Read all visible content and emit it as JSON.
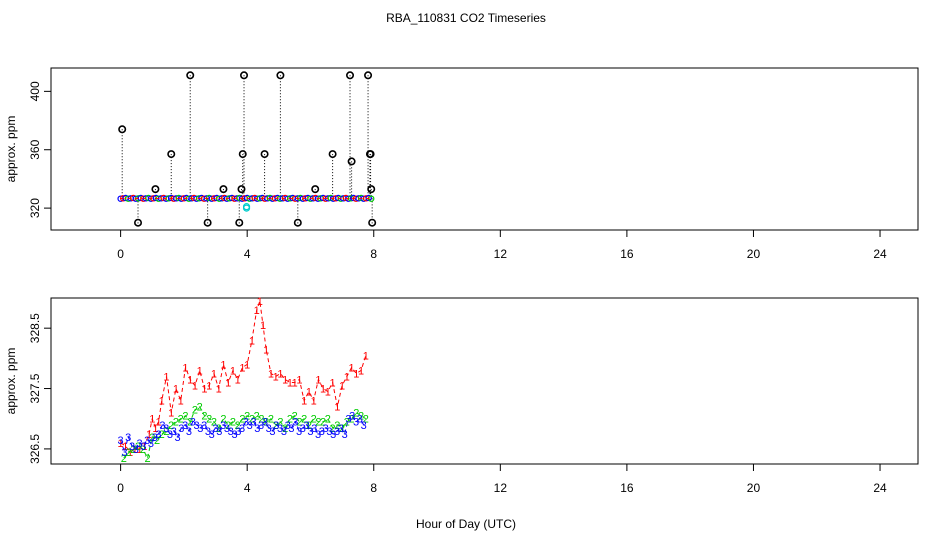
{
  "title": "RBA_110831  CO2 Timeseries",
  "xlabel": "Hour of Day (UTC)",
  "colors": {
    "series1": "#ff0000",
    "series2": "#00cc00",
    "series3": "#0000ff",
    "raw": "#000000",
    "highlight": "#00cccc"
  },
  "chart_data": [
    {
      "type": "scatter",
      "ylabel": "approx. ppm",
      "xlim": [
        -2.2,
        25.2
      ],
      "ylim": [
        305,
        416
      ],
      "xticks": [
        "0",
        "4",
        "8",
        "12",
        "16",
        "20",
        "24"
      ],
      "yticks": [
        "320",
        "360",
        "400"
      ],
      "grid": false,
      "spikes": [
        [
          0.05,
          374
        ],
        [
          0.55,
          310
        ],
        [
          1.1,
          333
        ],
        [
          1.6,
          357
        ],
        [
          2.2,
          411
        ],
        [
          2.75,
          310
        ],
        [
          3.25,
          333
        ],
        [
          3.75,
          310
        ],
        [
          3.82,
          333
        ],
        [
          3.86,
          357
        ],
        [
          3.9,
          411
        ],
        [
          4.55,
          357
        ],
        [
          5.05,
          411
        ],
        [
          5.6,
          310
        ],
        [
          6.15,
          333
        ],
        [
          6.7,
          357
        ],
        [
          7.25,
          411
        ],
        [
          7.3,
          352
        ],
        [
          7.82,
          411
        ],
        [
          7.88,
          357
        ],
        [
          7.9,
          357
        ],
        [
          7.92,
          333
        ],
        [
          7.95,
          310
        ]
      ],
      "outliers": [
        {
          "x": 3.98,
          "y": 320
        },
        {
          "x": 3.98,
          "y": 321
        }
      ],
      "baseline": {
        "x_start": 0,
        "x_end": 7.95,
        "step": 0.08,
        "value": 326.7
      }
    },
    {
      "type": "line",
      "ylabel": "approx. ppm",
      "xlim": [
        -2.2,
        25.2
      ],
      "ylim": [
        326.25,
        329.0
      ],
      "xticks": [
        "0",
        "4",
        "8",
        "12",
        "16",
        "20",
        "24"
      ],
      "yticks": [
        "326.5",
        "327.5",
        "328.5"
      ],
      "grid": false,
      "series": [
        {
          "symbol": "1",
          "x": [
            0.0,
            0.15,
            0.3,
            0.45,
            0.6,
            0.75,
            0.9,
            1.0,
            1.1,
            1.2,
            1.3,
            1.45,
            1.6,
            1.75,
            1.9,
            2.05,
            2.2,
            2.35,
            2.5,
            2.65,
            2.8,
            2.95,
            3.1,
            3.25,
            3.4,
            3.55,
            3.7,
            3.85,
            4.0,
            4.15,
            4.3,
            4.4,
            4.5,
            4.6,
            4.75,
            4.9,
            5.05,
            5.2,
            5.35,
            5.5,
            5.65,
            5.8,
            5.95,
            6.1,
            6.25,
            6.4,
            6.55,
            6.7,
            6.85,
            7.0,
            7.15,
            7.3,
            7.45,
            7.6,
            7.75
          ],
          "values": [
            326.6,
            326.55,
            326.45,
            326.5,
            326.5,
            326.55,
            326.75,
            327.0,
            326.85,
            326.95,
            327.3,
            327.7,
            327.1,
            327.5,
            327.3,
            327.85,
            327.65,
            327.55,
            327.8,
            327.5,
            327.55,
            327.75,
            327.5,
            327.9,
            327.6,
            327.8,
            327.65,
            327.85,
            327.9,
            328.3,
            328.8,
            328.95,
            328.55,
            328.15,
            327.75,
            327.7,
            327.75,
            327.65,
            327.6,
            327.6,
            327.65,
            327.3,
            327.45,
            327.3,
            327.65,
            327.5,
            327.45,
            327.6,
            327.2,
            327.55,
            327.7,
            327.85,
            327.75,
            327.8,
            328.05
          ]
        },
        {
          "symbol": "2",
          "x": [
            0.1,
            0.25,
            0.4,
            0.55,
            0.7,
            0.85,
            1.0,
            1.15,
            1.3,
            1.45,
            1.6,
            1.75,
            1.9,
            2.05,
            2.2,
            2.35,
            2.5,
            2.65,
            2.8,
            2.95,
            3.1,
            3.25,
            3.4,
            3.55,
            3.7,
            3.85,
            4.0,
            4.15,
            4.3,
            4.45,
            4.6,
            4.75,
            4.9,
            5.05,
            5.2,
            5.35,
            5.5,
            5.65,
            5.8,
            5.95,
            6.1,
            6.25,
            6.4,
            6.55,
            6.7,
            6.85,
            7.0,
            7.15,
            7.3,
            7.45,
            7.6,
            7.75
          ],
          "values": [
            326.35,
            326.45,
            326.5,
            326.55,
            326.5,
            326.35,
            326.7,
            326.65,
            326.75,
            326.8,
            326.9,
            326.95,
            327.0,
            327.05,
            326.95,
            327.15,
            327.2,
            327.05,
            327.0,
            326.95,
            326.85,
            327.0,
            326.9,
            326.95,
            326.9,
            327.0,
            327.05,
            327.0,
            327.05,
            327.0,
            326.95,
            327.0,
            326.9,
            326.95,
            326.85,
            327.0,
            327.05,
            326.95,
            327.0,
            326.9,
            327.0,
            326.95,
            326.95,
            327.0,
            326.85,
            326.9,
            326.85,
            326.95,
            327.0,
            327.1,
            327.05,
            327.0
          ]
        },
        {
          "symbol": "3",
          "x": [
            0.0,
            0.12,
            0.24,
            0.36,
            0.48,
            0.6,
            0.72,
            0.84,
            0.96,
            1.08,
            1.2,
            1.32,
            1.44,
            1.56,
            1.68,
            1.8,
            1.92,
            2.04,
            2.16,
            2.28,
            2.4,
            2.52,
            2.64,
            2.76,
            2.88,
            3.0,
            3.12,
            3.24,
            3.36,
            3.48,
            3.6,
            3.72,
            3.84,
            3.96,
            4.08,
            4.2,
            4.32,
            4.44,
            4.56,
            4.68,
            4.8,
            4.92,
            5.04,
            5.16,
            5.28,
            5.4,
            5.52,
            5.64,
            5.76,
            5.88,
            6.0,
            6.12,
            6.24,
            6.36,
            6.48,
            6.6,
            6.72,
            6.84,
            6.96,
            7.08,
            7.2,
            7.32,
            7.44,
            7.56,
            7.68
          ],
          "values": [
            326.65,
            326.45,
            326.7,
            326.55,
            326.5,
            326.6,
            326.55,
            326.65,
            326.6,
            326.7,
            326.75,
            326.9,
            326.85,
            326.75,
            326.8,
            326.7,
            326.85,
            326.9,
            326.8,
            326.95,
            326.9,
            326.85,
            326.9,
            326.8,
            326.75,
            326.85,
            326.8,
            326.9,
            326.85,
            326.8,
            326.75,
            326.8,
            326.85,
            326.95,
            326.9,
            326.95,
            326.85,
            326.9,
            326.95,
            326.85,
            326.8,
            326.9,
            326.85,
            326.8,
            326.9,
            326.85,
            326.95,
            326.8,
            326.85,
            326.9,
            326.8,
            326.85,
            326.75,
            326.8,
            326.85,
            326.8,
            326.75,
            326.8,
            326.85,
            326.75,
            327.0,
            327.05,
            326.95,
            327.0,
            326.9
          ]
        }
      ]
    }
  ]
}
